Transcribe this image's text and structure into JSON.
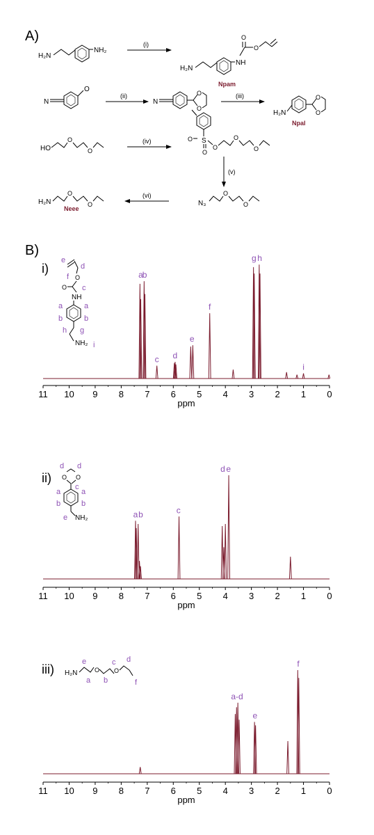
{
  "panel_a": {
    "label": "A)",
    "steps": [
      "(i)",
      "(ii)",
      "(iii)",
      "(iv)",
      "(v)",
      "(vi)"
    ],
    "compound_names": [
      "Npam",
      "Npal",
      "Neee"
    ],
    "atoms": {
      "nh2": "NH₂",
      "h2n": "H₂N",
      "ho": "HO",
      "n_cyano": "N",
      "o": "O",
      "s": "S",
      "nh": "NH",
      "n3": "N₃"
    }
  },
  "panel_b": {
    "label": "B)",
    "spectra": [
      {
        "label": "i)",
        "peak_labels": [
          {
            "text": "a",
            "x": 7.25
          },
          {
            "text": "b",
            "x": 7.1
          },
          {
            "text": "c",
            "x": 6.63
          },
          {
            "text": "d",
            "x": 5.93
          },
          {
            "text": "e",
            "x": 5.28
          },
          {
            "text": "f",
            "x": 4.6
          },
          {
            "text": "g",
            "x": 2.9
          },
          {
            "text": "h",
            "x": 2.68
          },
          {
            "text": "i",
            "x": 1.0
          }
        ],
        "structure_labels": [
          "e",
          "d",
          "f",
          "c",
          "a",
          "a",
          "b",
          "b",
          "h",
          "g",
          "i"
        ],
        "atoms": {
          "o": "O",
          "nh": "NH",
          "nh2": "NH₂"
        }
      },
      {
        "label": "ii)",
        "peak_labels": [
          {
            "text": "a",
            "x": 7.45
          },
          {
            "text": "b",
            "x": 7.25
          },
          {
            "text": "c",
            "x": 5.8
          },
          {
            "text": "d",
            "x": 4.1
          },
          {
            "text": "e",
            "x": 3.88
          }
        ],
        "structure_labels": [
          "d",
          "d",
          "c",
          "a",
          "a",
          "b",
          "b",
          "e"
        ],
        "atoms": {
          "o": "O",
          "nh2": "NH₂"
        }
      },
      {
        "label": "iii)",
        "peak_labels": [
          {
            "text": "a-d",
            "x": 3.55
          },
          {
            "text": "e",
            "x": 2.86
          },
          {
            "text": "f",
            "x": 1.2
          }
        ],
        "structure_labels": [
          "e",
          "a",
          "b",
          "c",
          "d",
          "f"
        ],
        "atoms": {
          "h2n": "H₂N",
          "o": "O"
        }
      }
    ]
  },
  "colors": {
    "spectrum_line": "#7b1c2e",
    "peak_label": "#8e52b5",
    "compound_name": "#7b1c2e",
    "text": "#000000"
  },
  "chart_data": [
    {
      "type": "line",
      "title": "i)",
      "xlabel": "ppm",
      "ylabel": "",
      "xlim": [
        11,
        0
      ],
      "ylim": [
        0,
        1
      ],
      "x_reversed": true,
      "grid": false,
      "xticks": [
        11,
        10,
        9,
        8,
        7,
        6,
        5,
        4,
        3,
        2,
        1,
        0
      ],
      "peaks": [
        {
          "x": 7.28,
          "y": 0.74
        },
        {
          "x": 7.25,
          "y": 0.62
        },
        {
          "x": 7.12,
          "y": 0.76
        },
        {
          "x": 7.09,
          "y": 0.66
        },
        {
          "x": 6.63,
          "y": 0.1
        },
        {
          "x": 5.96,
          "y": 0.12
        },
        {
          "x": 5.93,
          "y": 0.13
        },
        {
          "x": 5.9,
          "y": 0.11
        },
        {
          "x": 5.33,
          "y": 0.25
        },
        {
          "x": 5.25,
          "y": 0.26
        },
        {
          "x": 4.6,
          "y": 0.51
        },
        {
          "x": 3.7,
          "y": 0.07
        },
        {
          "x": 2.92,
          "y": 0.87
        },
        {
          "x": 2.89,
          "y": 0.82
        },
        {
          "x": 2.7,
          "y": 0.89
        },
        {
          "x": 2.67,
          "y": 0.82
        },
        {
          "x": 1.65,
          "y": 0.05
        },
        {
          "x": 1.25,
          "y": 0.03
        },
        {
          "x": 1.0,
          "y": 0.04
        },
        {
          "x": 0.02,
          "y": 0.03
        }
      ]
    },
    {
      "type": "line",
      "title": "ii)",
      "xlabel": "ppm",
      "ylabel": "",
      "xlim": [
        11,
        0
      ],
      "ylim": [
        0,
        1
      ],
      "x_reversed": true,
      "grid": false,
      "xticks": [
        11,
        10,
        9,
        8,
        7,
        6,
        5,
        4,
        3,
        2,
        1,
        0
      ],
      "peaks": [
        {
          "x": 7.45,
          "y": 0.55
        },
        {
          "x": 7.42,
          "y": 0.48
        },
        {
          "x": 7.35,
          "y": 0.52
        },
        {
          "x": 7.3,
          "y": 0.17
        },
        {
          "x": 7.26,
          "y": 0.12
        },
        {
          "x": 5.78,
          "y": 0.59
        },
        {
          "x": 4.12,
          "y": 0.5
        },
        {
          "x": 4.06,
          "y": 0.3
        },
        {
          "x": 4.0,
          "y": 0.52
        },
        {
          "x": 3.87,
          "y": 0.98
        },
        {
          "x": 1.5,
          "y": 0.21
        }
      ]
    },
    {
      "type": "line",
      "title": "iii)",
      "xlabel": "ppm",
      "ylabel": "",
      "xlim": [
        11,
        0
      ],
      "ylim": [
        0,
        1
      ],
      "x_reversed": true,
      "grid": false,
      "xticks": [
        11,
        10,
        9,
        8,
        7,
        6,
        5,
        4,
        3,
        2,
        1,
        0
      ],
      "peaks": [
        {
          "x": 7.27,
          "y": 0.06
        },
        {
          "x": 3.62,
          "y": 0.53
        },
        {
          "x": 3.57,
          "y": 0.59
        },
        {
          "x": 3.52,
          "y": 0.63
        },
        {
          "x": 3.47,
          "y": 0.48
        },
        {
          "x": 2.88,
          "y": 0.46
        },
        {
          "x": 2.84,
          "y": 0.43
        },
        {
          "x": 1.6,
          "y": 0.29
        },
        {
          "x": 1.22,
          "y": 0.92
        },
        {
          "x": 1.18,
          "y": 0.85
        }
      ]
    }
  ]
}
